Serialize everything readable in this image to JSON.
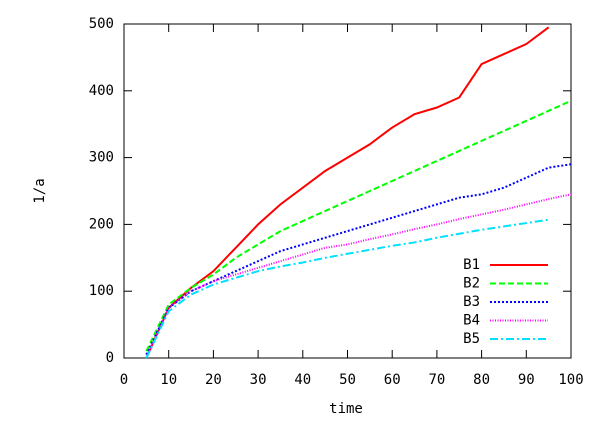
{
  "chart_data": {
    "type": "line",
    "x_label": "time",
    "y_label": "1/a",
    "x": [
      5,
      10,
      15,
      20,
      25,
      30,
      35,
      40,
      45,
      50,
      55,
      60,
      65,
      70,
      75,
      80,
      85,
      90,
      95,
      100
    ],
    "series": [
      {
        "name": "B1",
        "color": "#ff0000",
        "dash": "solid",
        "values": [
          0,
          75,
          105,
          130,
          165,
          200,
          230,
          255,
          280,
          300,
          320,
          345,
          365,
          375,
          390,
          440,
          455,
          470,
          495,
          null
        ]
      },
      {
        "name": "B2",
        "color": "#00ff00",
        "dash": "dashed",
        "values": [
          10,
          80,
          105,
          125,
          150,
          170,
          190,
          205,
          220,
          235,
          250,
          265,
          280,
          295,
          310,
          325,
          340,
          355,
          370,
          385
        ]
      },
      {
        "name": "B3",
        "color": "#0000ff",
        "dash": "dotted",
        "values": [
          5,
          75,
          100,
          115,
          130,
          145,
          160,
          170,
          180,
          190,
          200,
          210,
          220,
          230,
          240,
          245,
          255,
          270,
          285,
          290
        ]
      },
      {
        "name": "B4",
        "color": "#ff00ff",
        "dash": "fine-dotted",
        "values": [
          0,
          75,
          100,
          115,
          125,
          135,
          145,
          155,
          165,
          170,
          178,
          185,
          193,
          200,
          208,
          215,
          222,
          230,
          238,
          245
        ]
      },
      {
        "name": "B5",
        "color": "#00e0ff",
        "dash": "dash-dot",
        "values": [
          0,
          70,
          95,
          110,
          120,
          130,
          137,
          143,
          150,
          156,
          162,
          168,
          173,
          180,
          186,
          192,
          197,
          202,
          207,
          null
        ]
      }
    ],
    "xlim": [
      0,
      100
    ],
    "xticks": [
      0,
      10,
      20,
      30,
      40,
      50,
      60,
      70,
      80,
      90,
      100
    ],
    "ylim": [
      0,
      500
    ],
    "yticks": [
      0,
      100,
      200,
      300,
      400,
      500
    ],
    "grid": false,
    "legend": "bottom-right"
  }
}
